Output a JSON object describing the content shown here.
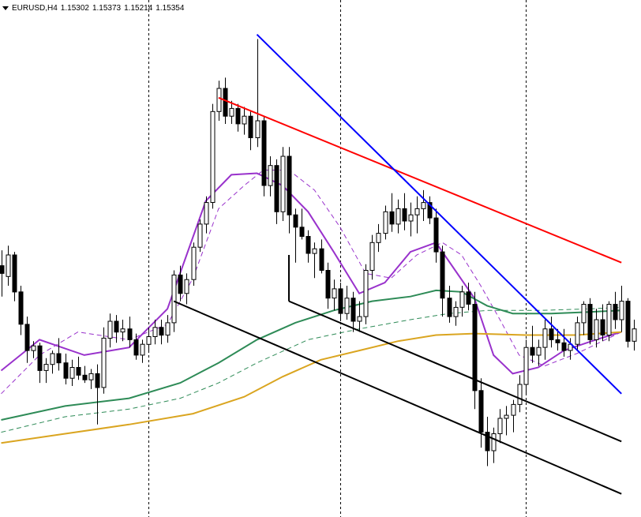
{
  "header": {
    "symbol": "EURUSD,H4",
    "open": "1.15302",
    "high": "1.15373",
    "low": "1.15214",
    "close": "1.15354"
  },
  "chart_data": {
    "type": "candlestick",
    "symbol": "EURUSD",
    "timeframe": "H4",
    "colors": {
      "bull_fill": "#ffffff",
      "bear_fill": "#000000",
      "wick": "#000000"
    },
    "candles": [
      [
        1.1453,
        1.1463,
        1.1433,
        1.1448
      ],
      [
        1.1446,
        1.1466,
        1.144,
        1.146
      ],
      [
        1.146,
        1.1462,
        1.143,
        1.1436
      ],
      [
        1.1436,
        1.144,
        1.1408,
        1.1415
      ],
      [
        1.1415,
        1.142,
        1.139,
        1.1398
      ],
      [
        1.1398,
        1.1404,
        1.1393,
        1.1401
      ],
      [
        1.1401,
        1.1403,
        1.1377,
        1.1385
      ],
      [
        1.1385,
        1.1393,
        1.1377,
        1.1389
      ],
      [
        1.1389,
        1.1398,
        1.1383,
        1.1396
      ],
      [
        1.1396,
        1.1406,
        1.1385,
        1.139
      ],
      [
        1.139,
        1.1396,
        1.1376,
        1.138
      ],
      [
        1.138,
        1.1392,
        1.1375,
        1.1387
      ],
      [
        1.1387,
        1.1394,
        1.1379,
        1.1382
      ],
      [
        1.1382,
        1.1388,
        1.1377,
        1.1379
      ],
      [
        1.1379,
        1.1386,
        1.1373,
        1.1383
      ],
      [
        1.1383,
        1.1389,
        1.135,
        1.1374
      ],
      [
        1.1374,
        1.1413,
        1.137,
        1.1406
      ],
      [
        1.1406,
        1.1422,
        1.14,
        1.1417
      ],
      [
        1.1417,
        1.1421,
        1.1403,
        1.141
      ],
      [
        1.141,
        1.1418,
        1.1404,
        1.1412
      ],
      [
        1.1412,
        1.142,
        1.14,
        1.1405
      ],
      [
        1.1405,
        1.1409,
        1.1392,
        1.1395
      ],
      [
        1.1395,
        1.1405,
        1.139,
        1.1402
      ],
      [
        1.1402,
        1.1413,
        1.1398,
        1.1407
      ],
      [
        1.1407,
        1.1418,
        1.1402,
        1.1413
      ],
      [
        1.1413,
        1.1418,
        1.1402,
        1.1408
      ],
      [
        1.1408,
        1.1421,
        1.1403,
        1.1416
      ],
      [
        1.1416,
        1.145,
        1.141,
        1.1447
      ],
      [
        1.1447,
        1.1453,
        1.143,
        1.1435
      ],
      [
        1.1435,
        1.1448,
        1.1428,
        1.1444
      ],
      [
        1.1444,
        1.1468,
        1.144,
        1.1465
      ],
      [
        1.1465,
        1.1483,
        1.1462,
        1.148
      ],
      [
        1.148,
        1.1498,
        1.1474,
        1.1494
      ],
      [
        1.1494,
        1.1558,
        1.149,
        1.1553
      ],
      [
        1.1553,
        1.1573,
        1.1547,
        1.1568
      ],
      [
        1.1568,
        1.1575,
        1.1545,
        1.155
      ],
      [
        1.155,
        1.156,
        1.1545,
        1.1555
      ],
      [
        1.1555,
        1.1558,
        1.154,
        1.1545
      ],
      [
        1.1545,
        1.1556,
        1.1538,
        1.155
      ],
      [
        1.155,
        1.1553,
        1.1528,
        1.1536
      ],
      [
        1.1536,
        1.16,
        1.153,
        1.1547
      ],
      [
        1.1547,
        1.155,
        1.1498,
        1.1505
      ],
      [
        1.1505,
        1.1524,
        1.1498,
        1.1518
      ],
      [
        1.1518,
        1.1522,
        1.148,
        1.1488
      ],
      [
        1.1488,
        1.153,
        1.1482,
        1.1524
      ],
      [
        1.1524,
        1.153,
        1.1474,
        1.1486
      ],
      [
        1.1486,
        1.149,
        1.1455,
        1.1478
      ],
      [
        1.1478,
        1.149,
        1.147,
        1.1472
      ],
      [
        1.1472,
        1.1476,
        1.1455,
        1.1461
      ],
      [
        1.1461,
        1.1468,
        1.1445,
        1.1464
      ],
      [
        1.1464,
        1.147,
        1.1448,
        1.145
      ],
      [
        1.145,
        1.1455,
        1.1425,
        1.1432
      ],
      [
        1.1432,
        1.1444,
        1.1424,
        1.1438
      ],
      [
        1.1438,
        1.1442,
        1.1417,
        1.1422
      ],
      [
        1.1422,
        1.144,
        1.1418,
        1.1432
      ],
      [
        1.1432,
        1.1436,
        1.141,
        1.1417
      ],
      [
        1.1417,
        1.143,
        1.141,
        1.142
      ],
      [
        1.142,
        1.1454,
        1.1415,
        1.145
      ],
      [
        1.145,
        1.1473,
        1.1444,
        1.1468
      ],
      [
        1.1468,
        1.148,
        1.1462,
        1.1474
      ],
      [
        1.1474,
        1.1492,
        1.147,
        1.1488
      ],
      [
        1.1488,
        1.15,
        1.1475,
        1.148
      ],
      [
        1.148,
        1.1496,
        1.1474,
        1.149
      ],
      [
        1.149,
        1.15,
        1.1476,
        1.1482
      ],
      [
        1.1482,
        1.1494,
        1.1472,
        1.1486
      ],
      [
        1.1486,
        1.1498,
        1.1474,
        1.149
      ],
      [
        1.149,
        1.1502,
        1.1482,
        1.1494
      ],
      [
        1.1494,
        1.1498,
        1.148,
        1.1484
      ],
      [
        1.1484,
        1.149,
        1.1455,
        1.1462
      ],
      [
        1.1462,
        1.1466,
        1.142,
        1.1432
      ],
      [
        1.1432,
        1.144,
        1.1416,
        1.142
      ],
      [
        1.142,
        1.143,
        1.1414,
        1.1426
      ],
      [
        1.1426,
        1.144,
        1.142,
        1.1436
      ],
      [
        1.1436,
        1.1442,
        1.1424,
        1.1428
      ],
      [
        1.1428,
        1.1436,
        1.136,
        1.1372
      ],
      [
        1.1372,
        1.138,
        1.1335,
        1.1345
      ],
      [
        1.1345,
        1.1355,
        1.1323,
        1.1333
      ],
      [
        1.1333,
        1.1348,
        1.1325,
        1.1344
      ],
      [
        1.1344,
        1.136,
        1.1338,
        1.1354
      ],
      [
        1.1354,
        1.1362,
        1.1343,
        1.1356
      ],
      [
        1.1356,
        1.1366,
        1.1345,
        1.1363
      ],
      [
        1.1363,
        1.1382,
        1.1358,
        1.1376
      ],
      [
        1.1376,
        1.1405,
        1.137,
        1.14
      ],
      [
        1.14,
        1.1414,
        1.139,
        1.1395
      ],
      [
        1.1395,
        1.1405,
        1.1388,
        1.14
      ],
      [
        1.14,
        1.1418,
        1.1392,
        1.1412
      ],
      [
        1.1412,
        1.142,
        1.14,
        1.1405
      ],
      [
        1.1405,
        1.1412,
        1.1398,
        1.1403
      ],
      [
        1.1403,
        1.1412,
        1.1394,
        1.1398
      ],
      [
        1.1398,
        1.1406,
        1.1392,
        1.1402
      ],
      [
        1.1402,
        1.142,
        1.1398,
        1.1416
      ],
      [
        1.1416,
        1.143,
        1.1408,
        1.1428
      ],
      [
        1.1428,
        1.1432,
        1.1402,
        1.1405
      ],
      [
        1.1405,
        1.1425,
        1.14,
        1.1418
      ],
      [
        1.1418,
        1.1428,
        1.1404,
        1.1408
      ],
      [
        1.1408,
        1.143,
        1.1404,
        1.1428
      ],
      [
        1.1428,
        1.1436,
        1.1412,
        1.1418
      ],
      [
        1.1418,
        1.144,
        1.141,
        1.143
      ],
      [
        1.143,
        1.1432,
        1.14,
        1.1404
      ],
      [
        1.1404,
        1.1418,
        1.1398,
        1.1412
      ]
    ],
    "moving_averages": [
      {
        "style": "solid",
        "color": "#9932cc",
        "points": [
          [
            0,
            1.1385
          ],
          [
            6,
            1.1405
          ],
          [
            13,
            1.1395
          ],
          [
            20,
            1.14
          ],
          [
            26,
            1.1425
          ],
          [
            29,
            1.146
          ],
          [
            32,
            1.1495
          ],
          [
            36,
            1.1512
          ],
          [
            40,
            1.1513
          ],
          [
            44,
            1.1505
          ],
          [
            48,
            1.1488
          ],
          [
            52,
            1.1462
          ],
          [
            56,
            1.1435
          ],
          [
            60,
            1.1442
          ],
          [
            64,
            1.1462
          ],
          [
            68,
            1.1468
          ],
          [
            71,
            1.145
          ],
          [
            74,
            1.1432
          ],
          [
            77,
            1.1395
          ],
          [
            80,
            1.1383
          ],
          [
            84,
            1.1387
          ],
          [
            88,
            1.1398
          ],
          [
            93,
            1.1405
          ],
          [
            97,
            1.141
          ]
        ]
      },
      {
        "style": "dashed",
        "color": "#9932cc",
        "points": [
          [
            0,
            1.137
          ],
          [
            6,
            1.1395
          ],
          [
            12,
            1.141
          ],
          [
            20,
            1.1405
          ],
          [
            26,
            1.1415
          ],
          [
            30,
            1.1445
          ],
          [
            34,
            1.149
          ],
          [
            38,
            1.1505
          ],
          [
            41,
            1.1515
          ],
          [
            45,
            1.1515
          ],
          [
            49,
            1.1502
          ],
          [
            53,
            1.1478
          ],
          [
            57,
            1.1448
          ],
          [
            61,
            1.1445
          ],
          [
            65,
            1.146
          ],
          [
            69,
            1.1468
          ],
          [
            72,
            1.146
          ],
          [
            75,
            1.144
          ],
          [
            78,
            1.1418
          ],
          [
            81,
            1.1395
          ],
          [
            85,
            1.1388
          ],
          [
            90,
            1.1396
          ],
          [
            95,
            1.1406
          ],
          [
            97,
            1.141
          ]
        ]
      },
      {
        "style": "solid",
        "color": "#2e8b57",
        "points": [
          [
            0,
            1.1353
          ],
          [
            10,
            1.1362
          ],
          [
            20,
            1.1367
          ],
          [
            28,
            1.1377
          ],
          [
            34,
            1.139
          ],
          [
            40,
            1.1405
          ],
          [
            46,
            1.1416
          ],
          [
            52,
            1.1424
          ],
          [
            58,
            1.143
          ],
          [
            64,
            1.1433
          ],
          [
            68,
            1.1437
          ],
          [
            72,
            1.1436
          ],
          [
            76,
            1.1427
          ],
          [
            80,
            1.1422
          ],
          [
            86,
            1.1422
          ],
          [
            92,
            1.1423
          ],
          [
            97,
            1.1424
          ]
        ]
      },
      {
        "style": "dashed",
        "color": "#2e8b57",
        "points": [
          [
            0,
            1.1345
          ],
          [
            10,
            1.1355
          ],
          [
            20,
            1.136
          ],
          [
            28,
            1.1367
          ],
          [
            34,
            1.1377
          ],
          [
            40,
            1.139
          ],
          [
            48,
            1.1405
          ],
          [
            56,
            1.1412
          ],
          [
            64,
            1.1418
          ],
          [
            70,
            1.1422
          ],
          [
            76,
            1.1424
          ],
          [
            84,
            1.1424
          ],
          [
            92,
            1.1425
          ],
          [
            97,
            1.1426
          ]
        ]
      },
      {
        "style": "solid",
        "color": "#daa520",
        "points": [
          [
            0,
            1.1338
          ],
          [
            10,
            1.1344
          ],
          [
            20,
            1.135
          ],
          [
            30,
            1.1357
          ],
          [
            38,
            1.1368
          ],
          [
            44,
            1.1381
          ],
          [
            50,
            1.1392
          ],
          [
            56,
            1.1398
          ],
          [
            62,
            1.1404
          ],
          [
            68,
            1.1408
          ],
          [
            74,
            1.1409
          ],
          [
            82,
            1.1408
          ],
          [
            90,
            1.1408
          ],
          [
            97,
            1.141
          ]
        ]
      }
    ],
    "trendlines": [
      {
        "color": "#ff0000",
        "from": [
          34,
          1.1562
        ],
        "to": [
          97,
          1.1455
        ]
      },
      {
        "color": "#0000ff",
        "from": [
          40,
          1.1603
        ],
        "to": [
          97,
          1.137
        ]
      },
      {
        "color": "#000000",
        "from": [
          27,
          1.143
        ],
        "to": [
          97,
          1.1305
        ]
      },
      {
        "color": "#000000",
        "from": [
          45,
          1.143
        ],
        "to": [
          97,
          1.1339
        ]
      },
      {
        "color": "#000000",
        "from": [
          45,
          1.146
        ],
        "to": [
          45,
          1.143
        ]
      }
    ],
    "vertical_separators": [
      23,
      53,
      82
    ],
    "grid": false
  }
}
